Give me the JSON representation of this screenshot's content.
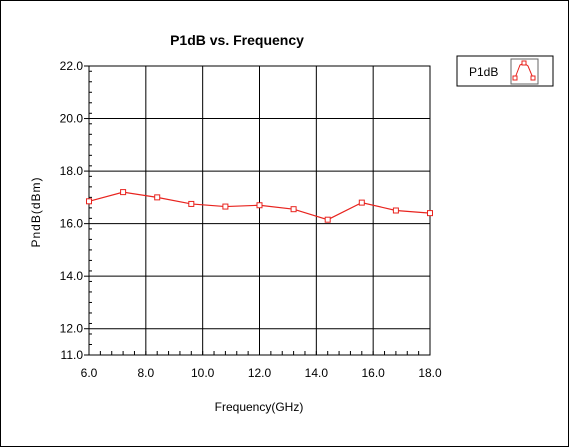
{
  "chart_data": {
    "type": "line",
    "title": "P1dB vs. Frequency",
    "xlabel": "Frequency(GHz)",
    "ylabel": "PndB(dBm)",
    "xlim": [
      6.0,
      18.0
    ],
    "ylim": [
      11.0,
      22.0
    ],
    "x_ticks": [
      "6.0",
      "8.0",
      "10.0",
      "12.0",
      "14.0",
      "16.0",
      "18.0"
    ],
    "y_ticks": [
      "11.0",
      "12.0",
      "14.0",
      "16.0",
      "18.0",
      "20.0",
      "22.0"
    ],
    "grid": true,
    "legend_position": "top-right",
    "series": [
      {
        "name": "P1dB",
        "color": "#e8231e",
        "marker": "square",
        "x": [
          6.0,
          7.2,
          8.4,
          9.6,
          10.8,
          12.0,
          13.2,
          14.4,
          15.6,
          16.8,
          18.0
        ],
        "y": [
          16.85,
          17.2,
          17.0,
          16.75,
          16.65,
          16.7,
          16.55,
          16.15,
          16.8,
          16.5,
          16.4
        ]
      }
    ]
  }
}
